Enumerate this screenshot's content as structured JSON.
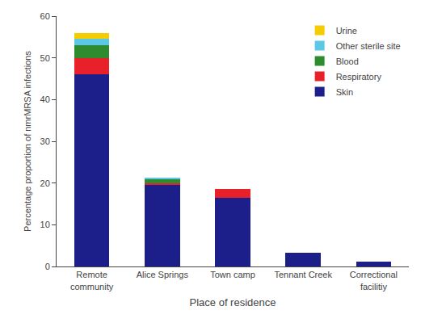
{
  "chart_data": {
    "type": "bar",
    "stacked": true,
    "categories": [
      "Remote\ncommunity",
      "Alice Springs",
      "Town camp",
      "Tennant Creek",
      "Correctional\nfacilitiy"
    ],
    "series": [
      {
        "name": "Skin",
        "color": "#1c1f8a",
        "values": [
          46.0,
          19.5,
          16.5,
          3.2,
          1.2
        ]
      },
      {
        "name": "Respiratory",
        "color": "#e8202a",
        "values": [
          4.0,
          0.5,
          2.0,
          0.0,
          0.0
        ]
      },
      {
        "name": "Blood",
        "color": "#2e8b2e",
        "values": [
          3.0,
          1.0,
          0.0,
          0.0,
          0.0
        ]
      },
      {
        "name": "Other sterile site",
        "color": "#5bc8e8",
        "values": [
          1.5,
          0.3,
          0.0,
          0.0,
          0.0
        ]
      },
      {
        "name": "Urine",
        "color": "#f5cc00",
        "values": [
          1.5,
          0.0,
          0.0,
          0.0,
          0.0
        ]
      }
    ],
    "xlabel": "Place of residence",
    "ylabel": "Percentage proportion of nmrMRSA infections",
    "ylim": [
      0,
      60
    ],
    "yticks": [
      0,
      10,
      20,
      30,
      40,
      50,
      60
    ],
    "legend": "upper right",
    "grid": false
  }
}
